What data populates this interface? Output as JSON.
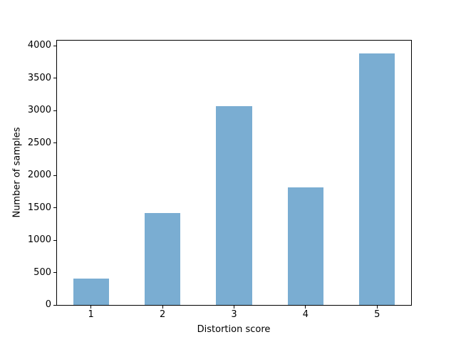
{
  "chart_data": {
    "type": "bar",
    "title": "",
    "xlabel": "Distortion score",
    "ylabel": "Number of samples",
    "categories": [
      "1",
      "2",
      "3",
      "4",
      "5"
    ],
    "values": [
      405,
      1420,
      3065,
      1810,
      3880
    ],
    "yticks": [
      0,
      500,
      1000,
      1500,
      2000,
      2500,
      3000,
      3500,
      4000
    ],
    "ylim": [
      0,
      4080
    ],
    "xlim": [
      0.525,
      5.475
    ],
    "bar_width_units": 0.5,
    "bar_color": "#7aadd2",
    "axis_color": "#000000",
    "background_color": "#ffffff",
    "grid": false,
    "legend": null
  }
}
